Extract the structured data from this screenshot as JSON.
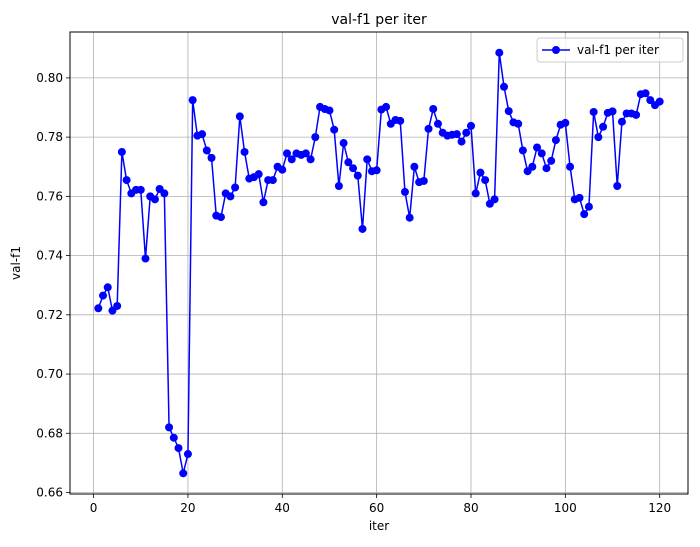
{
  "chart_data": {
    "type": "line",
    "title": "val-f1 per iter",
    "xlabel": "iter",
    "ylabel": "val-f1",
    "xlim": [
      -5,
      126
    ],
    "ylim": [
      0.6595,
      0.8155
    ],
    "xticks": [
      0,
      20,
      40,
      60,
      80,
      100,
      120
    ],
    "yticks": [
      0.66,
      0.68,
      0.7,
      0.72,
      0.74,
      0.76,
      0.78,
      0.8
    ],
    "ytick_labels": [
      "0.66",
      "0.68",
      "0.70",
      "0.72",
      "0.74",
      "0.76",
      "0.78",
      "0.80"
    ],
    "grid": true,
    "legend_position": "top-right",
    "series": [
      {
        "name": "val-f1 per iter",
        "color": "#0000ff",
        "marker": "circle",
        "x": [
          1,
          2,
          3,
          4,
          5,
          6,
          7,
          8,
          9,
          10,
          11,
          12,
          13,
          14,
          15,
          16,
          17,
          18,
          19,
          20,
          21,
          22,
          23,
          24,
          25,
          26,
          27,
          28,
          29,
          30,
          31,
          32,
          33,
          34,
          35,
          36,
          37,
          38,
          39,
          40,
          41,
          42,
          43,
          44,
          45,
          46,
          47,
          48,
          49,
          50,
          51,
          52,
          53,
          54,
          55,
          56,
          57,
          58,
          59,
          60,
          61,
          62,
          63,
          64,
          65,
          66,
          67,
          68,
          69,
          70,
          71,
          72,
          73,
          74,
          75,
          76,
          77,
          78,
          79,
          80,
          81,
          82,
          83,
          84,
          85,
          86,
          87,
          88,
          89,
          90,
          91,
          92,
          93,
          94,
          95,
          96,
          97,
          98,
          99,
          100,
          101,
          102,
          103,
          104,
          105,
          106,
          107,
          108,
          109,
          110,
          111,
          112,
          113,
          114,
          115,
          116,
          117,
          118,
          119,
          120
        ],
        "values": [
          0.7222,
          0.7265,
          0.7293,
          0.7214,
          0.723,
          0.775,
          0.7655,
          0.761,
          0.7622,
          0.7622,
          0.739,
          0.76,
          0.759,
          0.7625,
          0.761,
          0.682,
          0.6785,
          0.675,
          0.6665,
          0.673,
          0.7925,
          0.7805,
          0.781,
          0.7755,
          0.773,
          0.7535,
          0.753,
          0.761,
          0.76,
          0.763,
          0.787,
          0.775,
          0.766,
          0.7665,
          0.7675,
          0.758,
          0.7655,
          0.7655,
          0.77,
          0.769,
          0.7745,
          0.7725,
          0.7745,
          0.774,
          0.7745,
          0.7725,
          0.78,
          0.7902,
          0.7895,
          0.789,
          0.7825,
          0.7635,
          0.778,
          0.7715,
          0.7695,
          0.767,
          0.749,
          0.7725,
          0.7685,
          0.7688,
          0.7893,
          0.7902,
          0.7845,
          0.7858,
          0.7855,
          0.7615,
          0.7528,
          0.77,
          0.7648,
          0.7652,
          0.7828,
          0.7895,
          0.7845,
          0.7815,
          0.7805,
          0.7808,
          0.781,
          0.7785,
          0.7815,
          0.7838,
          0.761,
          0.768,
          0.7655,
          0.7575,
          0.759,
          0.8085,
          0.797,
          0.7888,
          0.785,
          0.7845,
          0.7755,
          0.7685,
          0.77,
          0.7765,
          0.7745,
          0.7695,
          0.772,
          0.779,
          0.7842,
          0.7848,
          0.77,
          0.759,
          0.7595,
          0.754,
          0.7565,
          0.7885,
          0.78,
          0.7835,
          0.7882,
          0.7887,
          0.7635,
          0.7852,
          0.788,
          0.788,
          0.7875,
          0.7945,
          0.7948,
          0.7925,
          0.7908,
          0.792
        ]
      }
    ]
  }
}
